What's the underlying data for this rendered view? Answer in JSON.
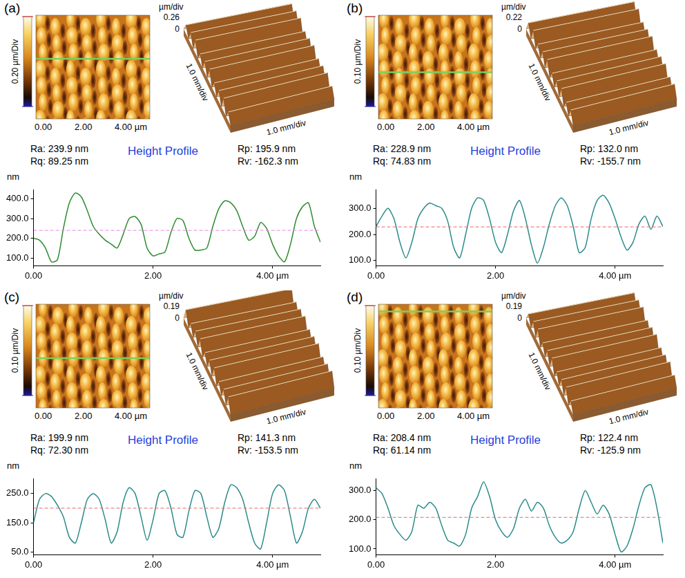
{
  "chart_data": [
    {
      "type": "line",
      "panel_label": "(a)",
      "title": "Height Profile",
      "annotations": [
        "Ra: 239.9 nm",
        "Rq: 89.25 nm",
        "Rp: 195.9 nm",
        "Rv: -162.3 nm"
      ],
      "y_label": "nm",
      "color": "#2e8b2e",
      "grid": false,
      "x": [
        0,
        0.1,
        0.2,
        0.3,
        0.4,
        0.5,
        0.6,
        0.7,
        0.8,
        0.9,
        1.0,
        1.1,
        1.2,
        1.3,
        1.4,
        1.5,
        1.6,
        1.7,
        1.8,
        1.9,
        2.0,
        2.1,
        2.2,
        2.3,
        2.4,
        2.5,
        2.6,
        2.7,
        2.8,
        2.9,
        3.0,
        3.1,
        3.2,
        3.3,
        3.4,
        3.5,
        3.6,
        3.7,
        3.8,
        3.9,
        4.0,
        4.1,
        4.2,
        4.3,
        4.4,
        4.5,
        4.6,
        4.7,
        4.8
      ],
      "values": [
        200,
        190,
        150,
        80,
        90,
        250,
        380,
        430,
        410,
        340,
        260,
        220,
        190,
        170,
        150,
        220,
        300,
        310,
        270,
        150,
        110,
        120,
        130,
        230,
        300,
        290,
        200,
        140,
        140,
        150,
        260,
        350,
        390,
        380,
        340,
        260,
        190,
        210,
        280,
        250,
        170,
        110,
        80,
        170,
        300,
        360,
        380,
        260,
        180
      ],
      "xlim": [
        0,
        4.8
      ],
      "xticks": [
        {
          "value": 0,
          "label": "0.00"
        },
        {
          "value": 2,
          "label": "2.00"
        },
        {
          "value": 4,
          "label": "4.00 µm"
        }
      ],
      "ylim": [
        60,
        445
      ],
      "yticks": [
        {
          "value": 100,
          "label": "100.0"
        },
        {
          "value": 200,
          "label": "200.0"
        },
        {
          "value": 300,
          "label": "300.0"
        },
        {
          "value": 400,
          "label": "400.0"
        }
      ],
      "reference_line": {
        "value": 239.9,
        "color": "#e48ae4",
        "line_style": "dashed"
      },
      "image": {
        "colorbar_label": "0.20 µm/Div",
        "surface_3d": {
          "z_label": "µm/div",
          "z_ticks": [
            0.26,
            0
          ],
          "axis_labels": [
            "1.0 mm/div",
            "1.0 mm/div"
          ]
        }
      }
    },
    {
      "type": "line",
      "panel_label": "(b)",
      "title": "Height Profile",
      "annotations": [
        "Ra: 228.9 nm",
        "Rq: 74.83 nm",
        "Rp: 132.0 nm",
        "Rv: -155.7 nm"
      ],
      "y_label": "nm",
      "color": "#2a8a8a",
      "grid": false,
      "x": [
        0,
        0.1,
        0.2,
        0.3,
        0.4,
        0.5,
        0.6,
        0.7,
        0.8,
        0.9,
        1.0,
        1.1,
        1.2,
        1.3,
        1.4,
        1.5,
        1.6,
        1.7,
        1.8,
        1.9,
        2.0,
        2.1,
        2.2,
        2.3,
        2.4,
        2.5,
        2.6,
        2.7,
        2.8,
        2.9,
        3.0,
        3.1,
        3.2,
        3.3,
        3.4,
        3.5,
        3.6,
        3.7,
        3.8,
        3.9,
        4.0,
        4.1,
        4.2,
        4.3,
        4.4,
        4.5,
        4.6,
        4.7,
        4.8
      ],
      "values": [
        230,
        270,
        300,
        260,
        170,
        110,
        170,
        260,
        300,
        320,
        310,
        300,
        250,
        150,
        110,
        200,
        300,
        340,
        330,
        260,
        170,
        130,
        200,
        290,
        330,
        260,
        160,
        90,
        150,
        240,
        310,
        340,
        310,
        230,
        130,
        150,
        260,
        330,
        350,
        320,
        260,
        190,
        140,
        170,
        240,
        270,
        220,
        270,
        230
      ],
      "xlim": [
        0,
        4.8
      ],
      "xticks": [
        {
          "value": 0,
          "label": "0.00"
        },
        {
          "value": 2,
          "label": "2.00"
        },
        {
          "value": 4,
          "label": "4.00 µm"
        }
      ],
      "ylim": [
        80,
        370
      ],
      "yticks": [
        {
          "value": 100,
          "label": "100.0"
        },
        {
          "value": 200,
          "label": "200.0"
        },
        {
          "value": 300,
          "label": "300.0"
        }
      ],
      "reference_line": {
        "value": 228.9,
        "color": "#e06a6a",
        "line_style": "dashed"
      },
      "image": {
        "colorbar_label": "0.10 µm/Div",
        "surface_3d": {
          "z_label": "µm/div",
          "z_ticks": [
            0.22,
            0
          ],
          "axis_labels": [
            "1.0 mm/div",
            "1.0 mm/div"
          ]
        }
      }
    },
    {
      "type": "line",
      "panel_label": "(c)",
      "title": "Height Profile",
      "annotations": [
        "Ra: 199.9 nm",
        "Rq: 72.30 nm",
        "Rp: 141.3 nm",
        "Rv: -153.5 nm"
      ],
      "y_label": "nm",
      "color": "#2a8a8a",
      "grid": false,
      "x": [
        0,
        0.1,
        0.2,
        0.3,
        0.4,
        0.5,
        0.6,
        0.7,
        0.8,
        0.9,
        1.0,
        1.1,
        1.2,
        1.3,
        1.4,
        1.5,
        1.6,
        1.7,
        1.8,
        1.9,
        2.0,
        2.1,
        2.2,
        2.3,
        2.4,
        2.5,
        2.6,
        2.7,
        2.8,
        2.9,
        3.0,
        3.1,
        3.2,
        3.3,
        3.4,
        3.5,
        3.6,
        3.7,
        3.8,
        3.9,
        4.0,
        4.1,
        4.2,
        4.3,
        4.4,
        4.5,
        4.6,
        4.7,
        4.8
      ],
      "values": [
        150,
        230,
        250,
        240,
        210,
        170,
        100,
        80,
        150,
        230,
        250,
        230,
        160,
        80,
        120,
        220,
        270,
        250,
        170,
        90,
        160,
        250,
        260,
        200,
        110,
        100,
        190,
        260,
        250,
        170,
        100,
        130,
        220,
        280,
        270,
        230,
        150,
        80,
        60,
        150,
        250,
        280,
        260,
        170,
        80,
        120,
        200,
        230,
        200
      ],
      "xlim": [
        0,
        4.8
      ],
      "xticks": [
        {
          "value": 0,
          "label": "0.00"
        },
        {
          "value": 2,
          "label": "2.00"
        },
        {
          "value": 4,
          "label": "4.00 µm"
        }
      ],
      "ylim": [
        40,
        300
      ],
      "yticks": [
        {
          "value": 50,
          "label": "50.0"
        },
        {
          "value": 150,
          "label": "150.0"
        },
        {
          "value": 250,
          "label": "250.0"
        }
      ],
      "reference_line": {
        "value": 199.9,
        "color": "#e06a6a",
        "line_style": "dashed"
      },
      "image": {
        "colorbar_label": "0.10 µm/Div",
        "surface_3d": {
          "z_label": "µm/div",
          "z_ticks": [
            0.19,
            0
          ],
          "axis_labels": [
            "1.0 mm/div",
            "1.0 mm/div"
          ]
        }
      }
    },
    {
      "type": "line",
      "panel_label": "(d)",
      "title": "Height Profile",
      "annotations": [
        "Ra: 208.4 nm",
        "Rq: 61.14 nm",
        "Rp: 122.4 nm",
        "Rv: -125.9 nm"
      ],
      "y_label": "nm",
      "color": "#2a8a8a",
      "grid": false,
      "x": [
        0,
        0.1,
        0.2,
        0.3,
        0.4,
        0.5,
        0.6,
        0.7,
        0.8,
        0.9,
        1.0,
        1.1,
        1.2,
        1.3,
        1.4,
        1.5,
        1.6,
        1.7,
        1.8,
        1.9,
        2.0,
        2.1,
        2.2,
        2.3,
        2.4,
        2.5,
        2.6,
        2.7,
        2.8,
        2.9,
        3.0,
        3.1,
        3.2,
        3.3,
        3.4,
        3.5,
        3.6,
        3.7,
        3.8,
        3.9,
        4.0,
        4.1,
        4.2,
        4.3,
        4.4,
        4.5,
        4.6,
        4.7,
        4.8
      ],
      "values": [
        310,
        290,
        240,
        180,
        150,
        130,
        160,
        250,
        240,
        260,
        240,
        180,
        130,
        120,
        110,
        150,
        240,
        280,
        330,
        280,
        200,
        160,
        140,
        170,
        240,
        270,
        230,
        260,
        240,
        180,
        140,
        120,
        130,
        160,
        240,
        300,
        260,
        220,
        250,
        220,
        150,
        90,
        110,
        170,
        250,
        310,
        320,
        240,
        120
      ],
      "xlim": [
        0,
        4.8
      ],
      "xticks": [
        {
          "value": 0,
          "label": "0.00"
        },
        {
          "value": 2,
          "label": "2.00"
        },
        {
          "value": 4,
          "label": "4.00 µm"
        }
      ],
      "ylim": [
        80,
        340
      ],
      "yticks": [
        {
          "value": 100,
          "label": "100.0"
        },
        {
          "value": 200,
          "label": "200.0"
        },
        {
          "value": 300,
          "label": "300.0"
        }
      ],
      "reference_line": {
        "value": 208.4,
        "color": "#e06a6a",
        "line_style": "dashed"
      },
      "image": {
        "colorbar_label": "0.10 µm/Div",
        "surface_3d": {
          "z_label": "µm/div",
          "z_ticks": [
            0.19,
            0
          ],
          "axis_labels": [
            "1.0 mm/div",
            "1.0 mm/div"
          ]
        }
      }
    }
  ]
}
